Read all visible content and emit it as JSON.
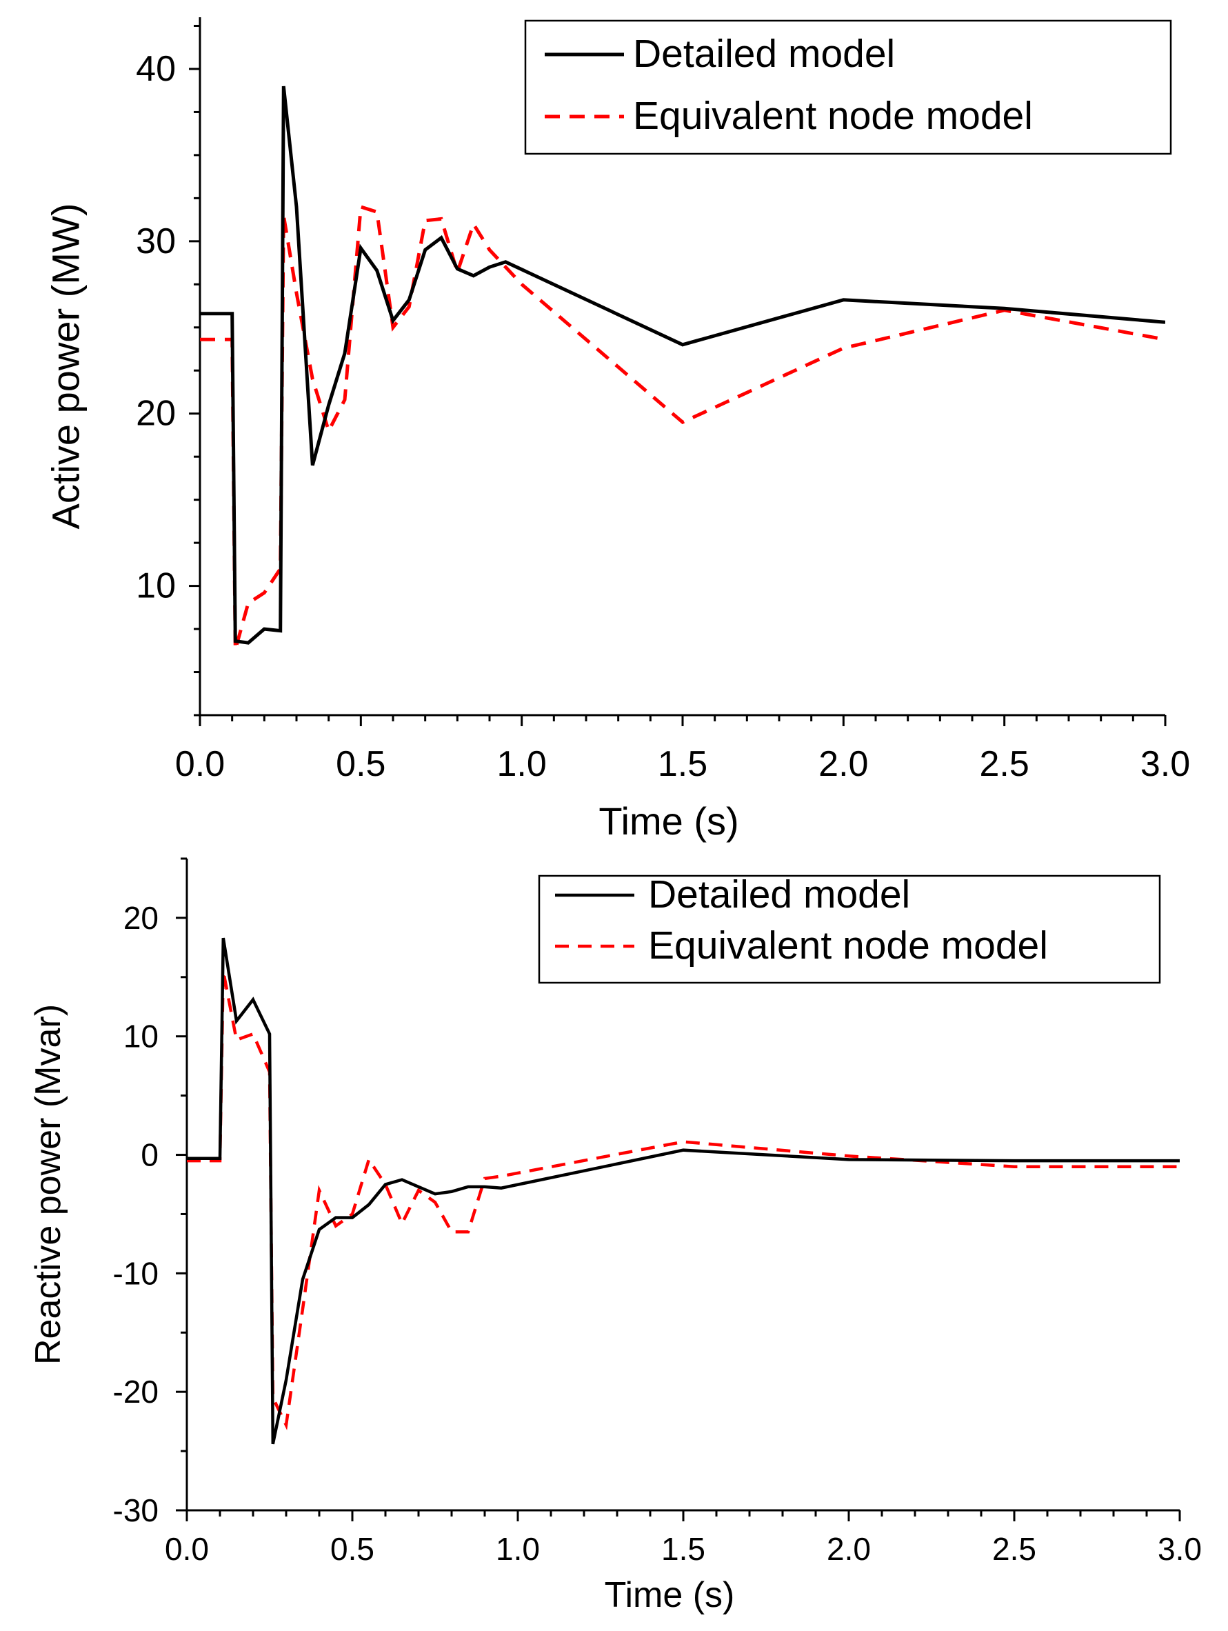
{
  "chart_data": [
    {
      "type": "line",
      "title": "",
      "xlabel": "Time (s)",
      "ylabel": "Active power (MW)",
      "xlim": [
        0.0,
        3.0
      ],
      "ylim": [
        2.5,
        43
      ],
      "x_ticks": [
        0.0,
        0.5,
        1.0,
        1.5,
        2.0,
        2.5,
        3.0
      ],
      "x_tick_labels": [
        "0.0",
        "0.5",
        "1.0",
        "1.5",
        "2.0",
        "2.5",
        "3.0"
      ],
      "y_ticks": [
        10,
        20,
        30,
        40
      ],
      "y_tick_labels": [
        "10",
        "20",
        "30",
        "40"
      ],
      "legend_position": "top-right",
      "series": [
        {
          "name": "Detailed model",
          "color": "#000000",
          "style": "solid",
          "x": [
            0.0,
            0.1,
            0.11,
            0.15,
            0.2,
            0.25,
            0.26,
            0.3,
            0.35,
            0.4,
            0.45,
            0.5,
            0.55,
            0.6,
            0.65,
            0.7,
            0.75,
            0.8,
            0.85,
            0.9,
            0.95,
            1.5,
            2.0,
            2.5,
            3.0
          ],
          "y": [
            25.8,
            25.8,
            6.8,
            6.7,
            7.5,
            7.4,
            39.0,
            32.0,
            17.0,
            20.5,
            23.5,
            29.6,
            28.3,
            25.4,
            26.6,
            29.5,
            30.2,
            28.4,
            28.0,
            28.5,
            28.8,
            24.0,
            26.6,
            26.1,
            25.3
          ]
        },
        {
          "name": "Equivalent node model",
          "color": "#ff0000",
          "style": "dashed",
          "x": [
            0.0,
            0.1,
            0.11,
            0.15,
            0.2,
            0.25,
            0.26,
            0.3,
            0.35,
            0.4,
            0.45,
            0.5,
            0.55,
            0.6,
            0.65,
            0.7,
            0.75,
            0.8,
            0.85,
            0.9,
            1.0,
            1.5,
            2.0,
            2.5,
            3.0
          ],
          "y": [
            24.3,
            24.3,
            6.3,
            9.0,
            9.6,
            11.0,
            31.5,
            27.0,
            22.0,
            19.0,
            20.8,
            32.0,
            31.7,
            25.0,
            26.2,
            31.2,
            31.3,
            28.2,
            31.0,
            29.5,
            27.5,
            19.5,
            23.8,
            26.0,
            24.3
          ]
        }
      ]
    },
    {
      "type": "line",
      "title": "",
      "xlabel": "Time (s)",
      "ylabel": "Reactive power (Mvar)",
      "xlim": [
        0.0,
        3.0
      ],
      "ylim": [
        -30,
        25
      ],
      "x_ticks": [
        0.0,
        0.5,
        1.0,
        1.5,
        2.0,
        2.5,
        3.0
      ],
      "x_tick_labels": [
        "0.0",
        "0.5",
        "1.0",
        "1.5",
        "2.0",
        "2.5",
        "3.0"
      ],
      "y_ticks": [
        -30,
        -20,
        -10,
        0,
        10,
        20
      ],
      "y_tick_labels": [
        "-30",
        "-20",
        "-10",
        "0",
        "10",
        "20"
      ],
      "legend_position": "top-right",
      "series": [
        {
          "name": "Detailed model",
          "color": "#000000",
          "style": "solid",
          "x": [
            0.0,
            0.1,
            0.11,
            0.15,
            0.2,
            0.25,
            0.26,
            0.3,
            0.35,
            0.4,
            0.45,
            0.5,
            0.55,
            0.6,
            0.65,
            0.7,
            0.75,
            0.8,
            0.85,
            0.9,
            0.95,
            1.5,
            2.0,
            2.5,
            3.0
          ],
          "y": [
            -0.3,
            -0.3,
            18.3,
            11.3,
            13.1,
            10.2,
            -24.4,
            -19.0,
            -10.5,
            -6.3,
            -5.3,
            -5.3,
            -4.2,
            -2.5,
            -2.1,
            -2.7,
            -3.3,
            -3.1,
            -2.7,
            -2.7,
            -2.8,
            0.4,
            -0.4,
            -0.5,
            -0.5
          ]
        },
        {
          "name": "Equivalent node model",
          "color": "#ff0000",
          "style": "dashed",
          "x": [
            0.0,
            0.1,
            0.11,
            0.15,
            0.2,
            0.25,
            0.26,
            0.3,
            0.35,
            0.4,
            0.45,
            0.5,
            0.55,
            0.6,
            0.65,
            0.7,
            0.75,
            0.8,
            0.85,
            0.9,
            0.95,
            1.5,
            2.0,
            2.5,
            3.0
          ],
          "y": [
            -0.5,
            -0.5,
            15.5,
            9.7,
            10.2,
            7.0,
            -20.5,
            -22.8,
            -13.0,
            -3.0,
            -6.0,
            -5.0,
            -0.4,
            -2.5,
            -5.8,
            -3.0,
            -4.0,
            -6.5,
            -6.5,
            -2.0,
            -1.8,
            1.1,
            -0.1,
            -1.0,
            -1.0
          ]
        }
      ]
    }
  ]
}
